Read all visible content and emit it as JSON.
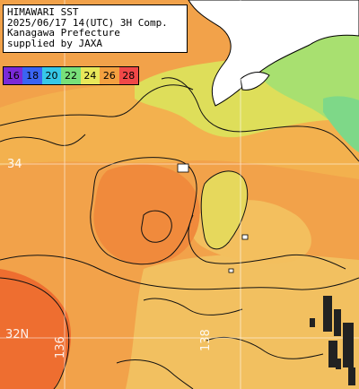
{
  "info": {
    "line1": "HIMAWARI SST",
    "line2": "2025/06/17 14(UTC) 3H Comp.",
    "line3": "Kanagawa Prefecture",
    "line4": "supplied by JAXA"
  },
  "legend": {
    "items": [
      {
        "label": "16",
        "color": "#7a2ad8"
      },
      {
        "label": "18",
        "color": "#3a64f2"
      },
      {
        "label": "20",
        "color": "#36c8e8"
      },
      {
        "label": "22",
        "color": "#78e07a"
      },
      {
        "label": "24",
        "color": "#e8e85a"
      },
      {
        "label": "26",
        "color": "#f4a040"
      },
      {
        "label": "28",
        "color": "#f04848"
      }
    ]
  },
  "grid_labels": {
    "lat34": "34",
    "lat32": "32N",
    "lon136": "136",
    "lon138": "138"
  },
  "colors": {
    "sea_warm": "#f2a24a",
    "sea_hot": "#f07a34",
    "sea_mild": "#f2c060",
    "coastal_yellow": "#dede5a",
    "coastal_green": "#a8e070",
    "land": "#ffffff",
    "cloud_mask": "#222222"
  }
}
